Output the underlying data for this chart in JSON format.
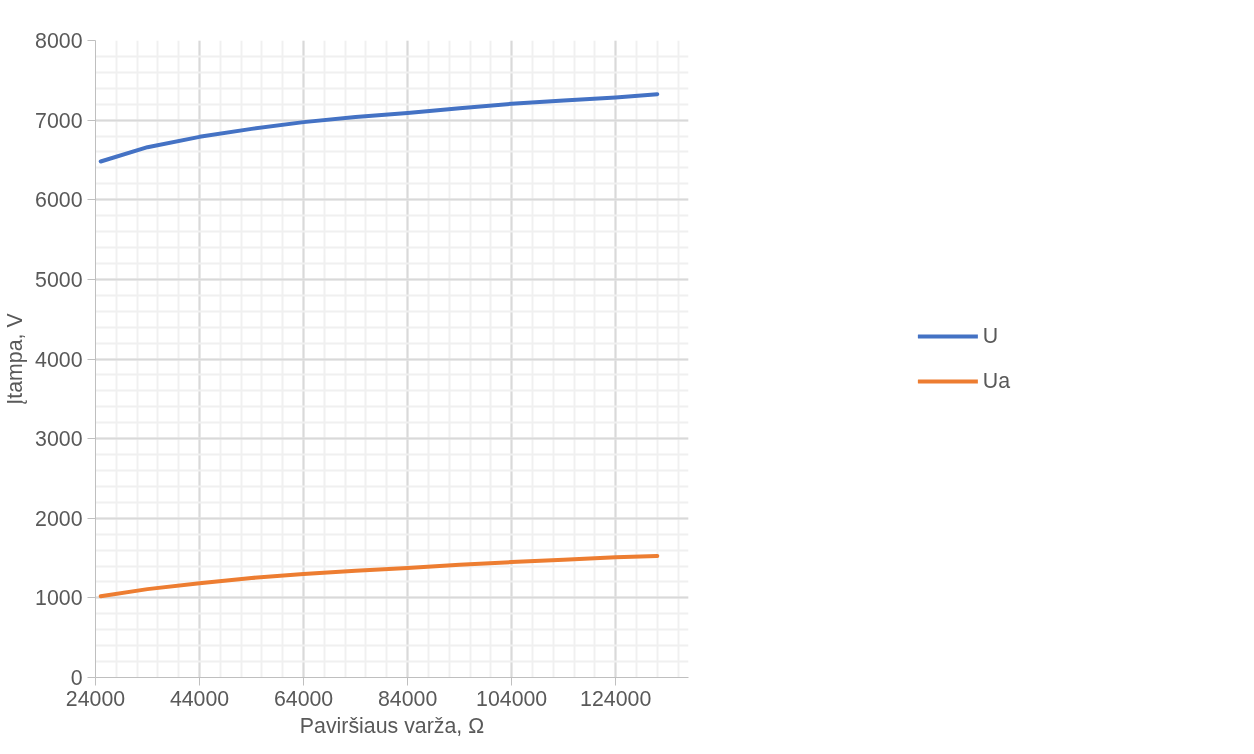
{
  "chart_data": {
    "type": "line",
    "xlabel": "Paviršiaus varža, Ω",
    "ylabel": "Įtampa, V",
    "xlim": [
      24000,
      138000
    ],
    "xticks": [
      24000,
      44000,
      64000,
      84000,
      104000,
      124000
    ],
    "ylim": [
      0,
      8000
    ],
    "yticks": [
      0,
      1000,
      2000,
      3000,
      4000,
      5000,
      6000,
      7000,
      8000
    ],
    "grid": true,
    "legend": "right",
    "marker": "none",
    "line_style": "solid",
    "series": [
      {
        "name": "U",
        "color": "#4472c4",
        "x": [
          25000,
          34000,
          44000,
          54000,
          64000,
          74000,
          84000,
          94000,
          104000,
          114000,
          124000,
          132000
        ],
        "values": [
          6480,
          6660,
          6790,
          6890,
          6975,
          7040,
          7090,
          7150,
          7205,
          7245,
          7285,
          7325
        ]
      },
      {
        "name": "Ua",
        "color": "#ed7d31",
        "x": [
          25000,
          34000,
          44000,
          54000,
          64000,
          74000,
          84000,
          94000,
          104000,
          114000,
          124000,
          132000
        ],
        "values": [
          1020,
          1110,
          1185,
          1250,
          1300,
          1340,
          1375,
          1415,
          1450,
          1480,
          1510,
          1527
        ]
      }
    ]
  }
}
